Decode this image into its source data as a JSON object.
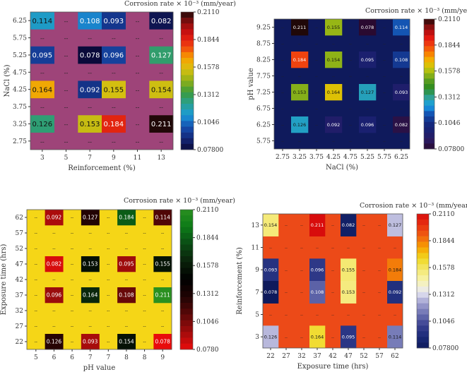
{
  "chart_data": [
    {
      "type": "heatmap",
      "title": "Corrosion rate × 10⁻³  (mm/year)",
      "xlabel": "Reinforcement (%)",
      "ylabel": "NaCl (%)",
      "x": [
        "3",
        "5",
        "7",
        "9",
        "11",
        "13"
      ],
      "y": [
        "6.25",
        "5.75",
        "5.25",
        "4.75",
        "4.25",
        "3.75",
        "3.25",
        "2.75"
      ],
      "values": [
        [
          0.114,
          null,
          0.108,
          0.093,
          null,
          0.082
        ],
        [
          null,
          null,
          null,
          null,
          null,
          null
        ],
        [
          0.095,
          null,
          0.078,
          0.096,
          null,
          0.127
        ],
        [
          null,
          null,
          null,
          null,
          null,
          null
        ],
        [
          0.164,
          null,
          0.092,
          0.155,
          null,
          0.154
        ],
        [
          null,
          null,
          null,
          null,
          null,
          null
        ],
        [
          0.126,
          null,
          0.153,
          0.184,
          null,
          0.211
        ],
        [
          null,
          null,
          null,
          null,
          null,
          null
        ]
      ],
      "value_labels": [
        [
          "0.114",
          "--",
          "0.108",
          "0.093",
          "--",
          "0.082"
        ],
        [
          "--",
          "--",
          "--",
          "--",
          "--",
          "--"
        ],
        [
          "0.095",
          "--",
          "0.078",
          "0.096",
          "--",
          "0.127"
        ],
        [
          "--",
          "--",
          "--",
          "--",
          "--",
          "--"
        ],
        [
          "0.164",
          "--",
          "0.092",
          "0.155",
          "--",
          "0.154"
        ],
        [
          "--",
          "--",
          "--",
          "--",
          "--",
          "--"
        ],
        [
          "0.126",
          "--",
          "0.153",
          "0.184",
          "--",
          "0.211"
        ],
        [
          "--",
          "--",
          "--",
          "--",
          "--",
          "--"
        ]
      ],
      "missing_label": "--",
      "background": "#9e4479",
      "colorbar": {
        "range": [
          0.078,
          0.211
        ],
        "ticks": [
          "0.2110",
          "0.1844",
          "0.1578",
          "0.1312",
          "0.1046",
          "0.07800"
        ],
        "colors": [
          "#0a0a3a",
          "#14287a",
          "#1550b0",
          "#1a9ad8",
          "#2aa090",
          "#3a9a3a",
          "#90b018",
          "#d8c010",
          "#f8a000",
          "#f04010",
          "#d81010",
          "#901010",
          "#200808"
        ]
      }
    },
    {
      "type": "heatmap",
      "title": "Corrosion rate × 10⁻³  (mm/year)",
      "xlabel": "NaCl (%)",
      "ylabel": "pH value",
      "x": [
        "2.75",
        "3.25",
        "3.75",
        "4.25",
        "4.75",
        "5.25",
        "5.75",
        "6.25"
      ],
      "y": [
        "9.25",
        "8.75",
        "8.25",
        "7.75",
        "7.25",
        "6.75",
        "6.25",
        "5.75"
      ],
      "values": [
        [
          null,
          0.211,
          null,
          0.155,
          null,
          0.078,
          null,
          0.114
        ],
        [
          null,
          null,
          null,
          null,
          null,
          null,
          null,
          null
        ],
        [
          null,
          0.184,
          null,
          0.154,
          null,
          0.095,
          null,
          0.108
        ],
        [
          null,
          null,
          null,
          null,
          null,
          null,
          null,
          null
        ],
        [
          null,
          0.153,
          null,
          0.164,
          null,
          0.127,
          null,
          0.093
        ],
        [
          null,
          null,
          null,
          null,
          null,
          null,
          null,
          null
        ],
        [
          null,
          0.126,
          null,
          0.092,
          null,
          0.096,
          null,
          0.082
        ],
        [
          null,
          null,
          null,
          null,
          null,
          null,
          null,
          null
        ]
      ],
      "value_labels": [
        [
          "--",
          "0.211",
          "--",
          "0.155",
          "--",
          "0.078",
          "--",
          "0.114"
        ],
        [
          "--",
          "--",
          "--",
          "--",
          "--",
          "--",
          "--",
          "--"
        ],
        [
          "--",
          "0.184",
          "--",
          "0.154",
          "--",
          "0.095",
          "--",
          "0.108"
        ],
        [
          "--",
          "--",
          "--",
          "--",
          "--",
          "--",
          "--",
          "--"
        ],
        [
          "--",
          "0.153",
          "--",
          "0.164",
          "--",
          "0.127",
          "--",
          "0.093"
        ],
        [
          "--",
          "--",
          "--",
          "--",
          "--",
          "--",
          "--",
          "--"
        ],
        [
          "--",
          "0.126",
          "--",
          "0.092",
          "--",
          "0.096",
          "--",
          "0.082"
        ],
        [
          "--",
          "--",
          "--",
          "--",
          "--",
          "--",
          "--",
          "--"
        ]
      ],
      "missing_label": "--",
      "background": "#0f1a5c",
      "colorbar": {
        "range": [
          0.078,
          0.211
        ],
        "ticks": [
          "0.2110",
          "0.1844",
          "0.1578",
          "0.1312",
          "0.1046",
          "0.07800"
        ],
        "colors": [
          "#2a0a30",
          "#2a1a60",
          "#1a2070",
          "#142a80",
          "#1450b0",
          "#18a0e8",
          "#30a090",
          "#2a8a20",
          "#60a020",
          "#b0c010",
          "#f0c000",
          "#f88000",
          "#f04010",
          "#e01010",
          "#901010",
          "#200808"
        ]
      }
    },
    {
      "type": "heatmap",
      "title": "Corrosion rate × 10⁻³  (mm/year)",
      "xlabel": "pH value",
      "ylabel": "Exposure time (hrs)",
      "x": [
        "5",
        "6",
        "6",
        "7",
        "7",
        "8",
        "8",
        "9"
      ],
      "y": [
        "62",
        "57",
        "52",
        "47",
        "42",
        "37",
        "32",
        "27",
        "22"
      ],
      "values": [
        [
          null,
          0.092,
          null,
          0.127,
          null,
          0.184,
          null,
          0.114
        ],
        [
          null,
          null,
          null,
          null,
          null,
          null,
          null,
          null
        ],
        [
          null,
          null,
          null,
          null,
          null,
          null,
          null,
          null
        ],
        [
          null,
          0.082,
          null,
          0.153,
          null,
          0.095,
          null,
          0.155
        ],
        [
          null,
          null,
          null,
          null,
          null,
          null,
          null,
          null
        ],
        [
          null,
          0.096,
          null,
          0.164,
          null,
          0.108,
          null,
          0.211
        ],
        [
          null,
          null,
          null,
          null,
          null,
          null,
          null,
          null
        ],
        [
          null,
          null,
          null,
          null,
          null,
          null,
          null,
          null
        ],
        [
          null,
          0.126,
          null,
          0.093,
          null,
          0.154,
          null,
          0.078
        ]
      ],
      "value_labels": [
        [
          "--",
          "0.092",
          "--",
          "0.127",
          "--",
          "0.184",
          "--",
          "0.114"
        ],
        [
          "--",
          "--",
          "--",
          "--",
          "--",
          "--",
          "--",
          "--"
        ],
        [
          "--",
          "--",
          "--",
          "--",
          "--",
          "--",
          "--",
          "--"
        ],
        [
          "--",
          "0.082",
          "--",
          "0.153",
          "--",
          "0.095",
          "--",
          "0.155"
        ],
        [
          "--",
          "--",
          "--",
          "--",
          "--",
          "--",
          "--",
          "--"
        ],
        [
          "--",
          "0.096",
          "--",
          "0.164",
          "--",
          "0.108",
          "--",
          "0.211"
        ],
        [
          "--",
          "--",
          "--",
          "--",
          "--",
          "--",
          "--",
          "--"
        ],
        [
          "--",
          "--",
          "--",
          "--",
          "--",
          "--",
          "--",
          "--"
        ],
        [
          "--",
          "0.126",
          "--",
          "0.093",
          "--",
          "0.154",
          "--",
          "0.078"
        ]
      ],
      "missing_label": "--",
      "background": "#f5d617",
      "colorbar": {
        "range": [
          0.078,
          0.211
        ],
        "ticks": [
          "0.2110",
          "0.1844",
          "0.1578",
          "0.1312",
          "0.1046",
          "0.0780"
        ],
        "colors": [
          "#e80c0c",
          "#a00c0c",
          "#5a0808",
          "#200404",
          "#000000",
          "#0a200a",
          "#0a4a14",
          "#0c7a18",
          "#2a9020"
        ]
      }
    },
    {
      "type": "heatmap",
      "title": "Corrosion rate × 10⁻³  (mm/year)",
      "xlabel": "Exposure time (hrs)",
      "ylabel": "Reinforcement (%)",
      "x": [
        "22",
        "27",
        "32",
        "37",
        "42",
        "47",
        "52",
        "57",
        "62"
      ],
      "y": [
        "13",
        "11",
        "9",
        "7",
        "5",
        "3"
      ],
      "values": [
        [
          0.154,
          null,
          null,
          0.211,
          null,
          0.082,
          null,
          null,
          0.127
        ],
        [
          null,
          null,
          null,
          null,
          null,
          null,
          null,
          null,
          null
        ],
        [
          0.093,
          null,
          null,
          0.096,
          null,
          0.155,
          null,
          null,
          0.184
        ],
        [
          0.078,
          null,
          null,
          0.108,
          null,
          0.153,
          null,
          null,
          0.092
        ],
        [
          null,
          null,
          null,
          null,
          null,
          null,
          null,
          null,
          null
        ],
        [
          0.126,
          null,
          null,
          0.164,
          null,
          0.095,
          null,
          null,
          0.114
        ]
      ],
      "value_labels": [
        [
          "0.154",
          "--",
          "--",
          "0.211",
          "--",
          "0.082",
          "--",
          "--",
          "0.127"
        ],
        [
          "--",
          "--",
          "--",
          "--",
          "--",
          "--",
          "--",
          "--",
          "--"
        ],
        [
          "0.093",
          "--",
          "--",
          "0.096",
          "--",
          "0.155",
          "--",
          "--",
          "0.184"
        ],
        [
          "0.078",
          "--",
          "--",
          "0.108",
          "--",
          "0.153",
          "--",
          "--",
          "0.092"
        ],
        [
          "--",
          "--",
          "--",
          "--",
          "--",
          "--",
          "--",
          "--",
          "--"
        ],
        [
          "0.126",
          "--",
          "--",
          "0.164",
          "--",
          "0.095",
          "--",
          "--",
          "0.114"
        ]
      ],
      "missing_label": "--",
      "background": "#ec4a18",
      "colorbar": {
        "range": [
          0.078,
          0.211
        ],
        "ticks": [
          "0.2110",
          "0.1844",
          "0.1578",
          "0.1312",
          "0.1046",
          "0.07800"
        ],
        "colors": [
          "#0e1a5c",
          "#1a2a78",
          "#3a4090",
          "#6a70b0",
          "#a0a0d0",
          "#e8e8f4",
          "#f8f4b0",
          "#f4e870",
          "#f0d820",
          "#f8a000",
          "#f06010",
          "#e83010",
          "#d80c0c"
        ]
      }
    }
  ]
}
